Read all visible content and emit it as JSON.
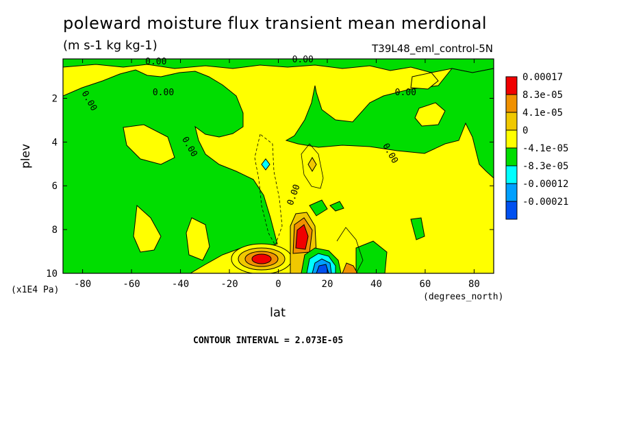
{
  "title": "poleward moisture flux transient mean merdional",
  "units": "(m s-1 kg kg-1)",
  "run_label": "T39L48_eml_control-5N",
  "contour_interval": "CONTOUR INTERVAL = 2.073E-05",
  "chart_data": {
    "type": "heatmap",
    "xlabel": "lat",
    "x_units": "(degrees_north)",
    "ylabel": "plev",
    "y_units": "(x1E4 Pa)",
    "xlim": [
      -88,
      88
    ],
    "ylim": [
      0.2,
      10
    ],
    "y_inverted": true,
    "x_ticks": [
      "-80",
      "-60",
      "-40",
      "-20",
      "0",
      "20",
      "40",
      "60",
      "80"
    ],
    "x_tick_values": [
      -80,
      -60,
      -40,
      -20,
      0,
      20,
      40,
      60,
      80
    ],
    "y_ticks": [
      "2",
      "4",
      "6",
      "8",
      "10"
    ],
    "y_tick_values": [
      2,
      4,
      6,
      8,
      10
    ],
    "contour_labels": [
      {
        "text": "0.00",
        "lat": -50,
        "plev": 0.3
      },
      {
        "text": "0.00",
        "lat": 10,
        "plev": 0.2
      },
      {
        "text": "0.00",
        "lat": -47,
        "plev": 1.7
      },
      {
        "text": "0.00",
        "lat": -77,
        "plev": 2.1
      },
      {
        "text": "0.00",
        "lat": 52,
        "plev": 1.7
      },
      {
        "text": "0.00",
        "lat": -36,
        "plev": 4.2
      },
      {
        "text": "0.00",
        "lat": 46,
        "plev": 4.5
      },
      {
        "text": "0.00",
        "lat": 6,
        "plev": 6.4
      }
    ],
    "legend": {
      "placement": "right",
      "labels": [
        "0.00017",
        "8.3e-05",
        "4.1e-05",
        "0",
        "-4.1e-05",
        "-8.3e-05",
        "-0.00012",
        "-0.00021"
      ],
      "colors": [
        "#f00000",
        "#f09000",
        "#f0c800",
        "#ffff00",
        "#00dd00",
        "#00ffff",
        "#00a0ff",
        "#0050f0"
      ]
    },
    "field_colors": {
      "yellow": "#ffff00",
      "green": "#00dd00",
      "orange": "#f0c800",
      "dark_orange": "#f09000",
      "red": "#f00000",
      "cyan": "#00ffff",
      "light_blue": "#00a0ff",
      "blue": "#0050f0"
    }
  }
}
